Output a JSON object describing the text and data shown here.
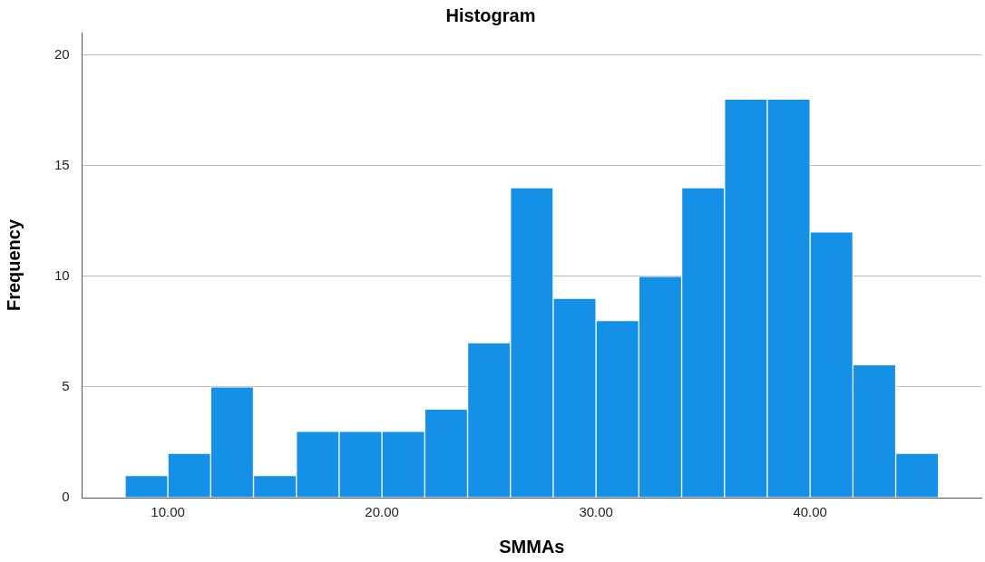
{
  "chart_data": {
    "type": "histogram",
    "title": "Histogram",
    "xlabel": "SMMAs",
    "ylabel": "Frequency",
    "bins": [
      8,
      10,
      12,
      14,
      16,
      18,
      20,
      22,
      24,
      26,
      28,
      30,
      32,
      34,
      36,
      38,
      40,
      42,
      44,
      46
    ],
    "values": [
      1,
      2,
      5,
      1,
      3,
      3,
      3,
      4,
      7,
      14,
      9,
      8,
      10,
      14,
      18,
      18,
      12,
      6,
      2
    ],
    "color": "#1491e6",
    "xlim": [
      6,
      48
    ],
    "xticks": [
      {
        "value": 10,
        "label": "10.00"
      },
      {
        "value": 20,
        "label": "20.00"
      },
      {
        "value": 30,
        "label": "30.00"
      },
      {
        "value": 40,
        "label": "40.00"
      }
    ],
    "ylim": [
      0,
      21
    ],
    "yticks": [
      0,
      5,
      10,
      15,
      20
    ],
    "grid": "y"
  }
}
